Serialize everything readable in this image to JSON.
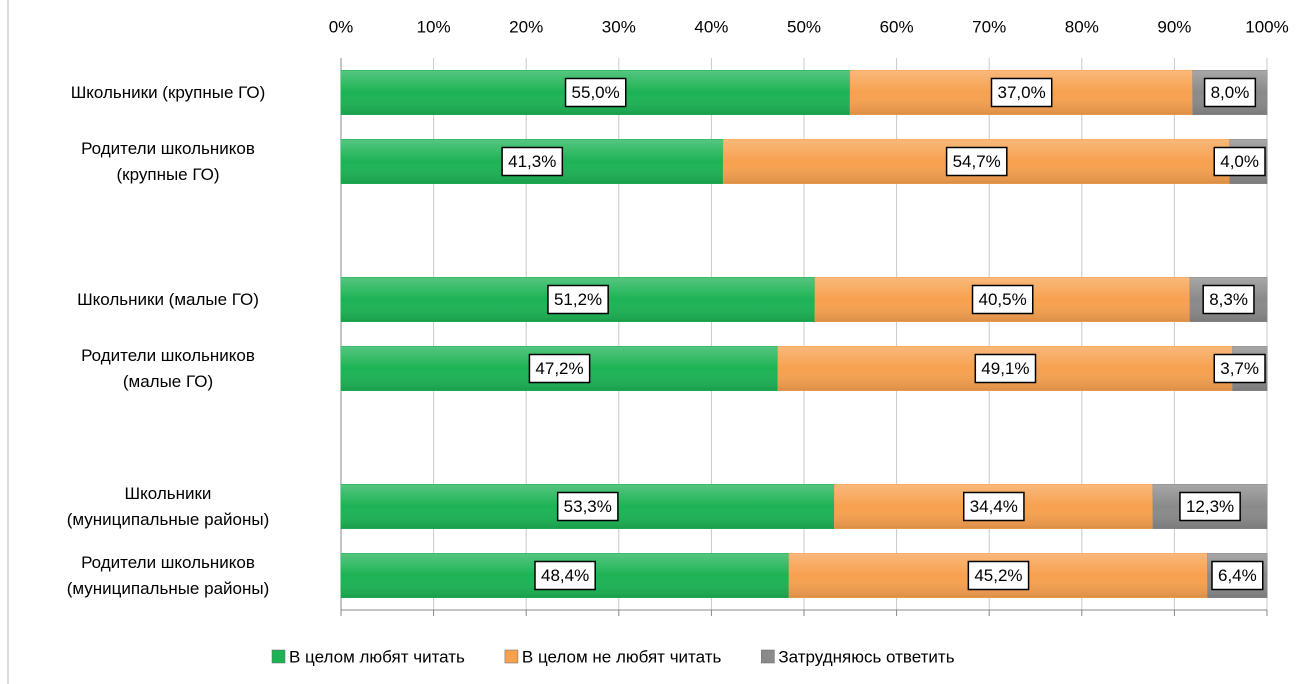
{
  "chart_data": {
    "type": "stacked-bar-horizontal",
    "categories": [
      "Школьники (крупные ГО)",
      "Родители школьников\n(крупные ГО)",
      null,
      "Школьники (малые ГО)",
      "Родители школьников\n(малые ГО)",
      null,
      "Школьники\n(муниципальные районы)",
      "Родители школьников\n(муниципальные районы)"
    ],
    "series": [
      {
        "name": "В целом любят читать",
        "color": "#1db355",
        "values": [
          55.0,
          41.3,
          null,
          51.2,
          47.2,
          null,
          53.3,
          48.4
        ],
        "value_labels": [
          "55,0%",
          "41,3%",
          null,
          "51,2%",
          "47,2%",
          null,
          "53,3%",
          "48,4%"
        ]
      },
      {
        "name": "В целом не любят читать",
        "color": "#f7a14f",
        "values": [
          37.0,
          54.7,
          null,
          40.5,
          49.1,
          null,
          34.4,
          45.2
        ],
        "value_labels": [
          "37,0%",
          "54,7%",
          null,
          "40,5%",
          "49,1%",
          null,
          "34,4%",
          "45,2%"
        ]
      },
      {
        "name": "Затрудняюсь ответить",
        "color": "#8a8a8a",
        "values": [
          8.0,
          4.0,
          null,
          8.3,
          3.7,
          null,
          12.3,
          6.4
        ],
        "value_labels": [
          "8,0%",
          "4,0%",
          null,
          "8,3%",
          "3,7%",
          null,
          "12,3%",
          "6,4%"
        ]
      }
    ],
    "xlim": [
      0,
      100
    ],
    "xticks": [
      {
        "value": 0,
        "label": "0%"
      },
      {
        "value": 10,
        "label": "10%"
      },
      {
        "value": 20,
        "label": "20%"
      },
      {
        "value": 30,
        "label": "30%"
      },
      {
        "value": 40,
        "label": "40%"
      },
      {
        "value": 50,
        "label": "50%"
      },
      {
        "value": 60,
        "label": "60%"
      },
      {
        "value": 70,
        "label": "70%"
      },
      {
        "value": 80,
        "label": "80%"
      },
      {
        "value": 90,
        "label": "90%"
      },
      {
        "value": 100,
        "label": "100%"
      }
    ],
    "grid": true,
    "legend": "bottom"
  }
}
